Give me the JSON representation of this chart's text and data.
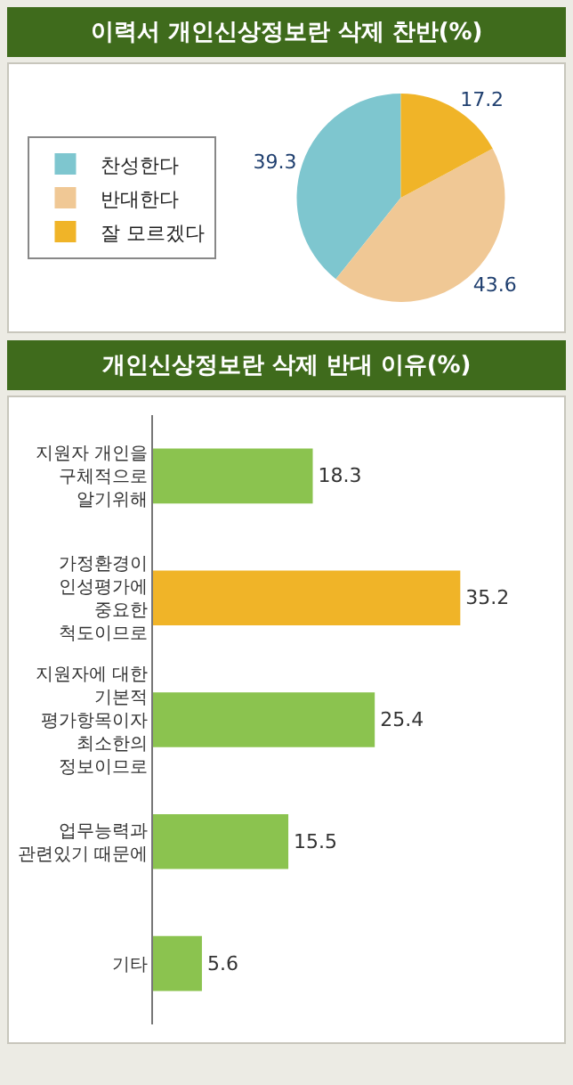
{
  "chart_data": [
    {
      "type": "pie",
      "title": "이력서 개인신상정보란 삭제 찬반(%)",
      "categories": [
        "찬성한다",
        "반대한다",
        "잘 모르겠다"
      ],
      "values": [
        39.3,
        43.6,
        17.2
      ],
      "colors": [
        "#7ec6cf",
        "#f0c895",
        "#f0b428"
      ],
      "data_labels": true,
      "legend": "left"
    },
    {
      "type": "bar",
      "orientation": "horizontal",
      "title": "개인신상정보란 삭제 반대 이유(%)",
      "categories": [
        "지원자 개인을\n구체적으로\n알기위해",
        "가정환경이\n인성평가에\n중요한\n척도이므로",
        "지원자에 대한\n기본적\n평가항목이자\n최소한의\n정보이므로",
        "업무능력과\n관련있기 때문에",
        "기타"
      ],
      "values": [
        18.3,
        35.2,
        25.4,
        15.5,
        5.6
      ],
      "colors": [
        "#8bc34f",
        "#f0b428",
        "#8bc34f",
        "#8bc34f",
        "#8bc34f"
      ],
      "data_labels": true,
      "legend": false
    }
  ]
}
